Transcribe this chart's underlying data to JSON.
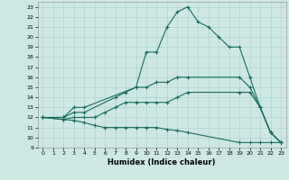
{
  "xlabel": "Humidex (Indice chaleur)",
  "xlim": [
    -0.5,
    23.5
  ],
  "ylim": [
    9,
    23.5
  ],
  "xticks": [
    0,
    1,
    2,
    3,
    4,
    5,
    6,
    7,
    8,
    9,
    10,
    11,
    12,
    13,
    14,
    15,
    16,
    17,
    18,
    19,
    20,
    21,
    22,
    23
  ],
  "yticks": [
    9,
    10,
    11,
    12,
    13,
    14,
    15,
    16,
    17,
    18,
    19,
    20,
    21,
    22,
    23
  ],
  "background_color": "#cde8e4",
  "grid_color": "#b0d4ce",
  "line_color": "#1a6b5e",
  "lines": [
    {
      "x": [
        0,
        2,
        3,
        4,
        9,
        10,
        11,
        12,
        13,
        14,
        15,
        16,
        17,
        18,
        19,
        20,
        21,
        22,
        23
      ],
      "y": [
        12,
        12,
        13,
        13,
        15,
        18.5,
        18.5,
        21,
        22.5,
        23,
        21.5,
        21.0,
        20.0,
        19.0,
        19.0,
        16.0,
        13.0,
        10.5,
        9.5
      ]
    },
    {
      "x": [
        0,
        2,
        3,
        4,
        7,
        8,
        9,
        10,
        11,
        12,
        13,
        14,
        19,
        20,
        21,
        22,
        23
      ],
      "y": [
        12,
        12,
        12.5,
        12.5,
        14,
        14.5,
        15,
        15,
        15.5,
        15.5,
        16,
        16,
        16,
        15.0,
        13.0,
        10.5,
        9.5
      ]
    },
    {
      "x": [
        0,
        2,
        3,
        4,
        5,
        6,
        7,
        8,
        9,
        10,
        11,
        12,
        13,
        14,
        19,
        20,
        21,
        22,
        23
      ],
      "y": [
        12,
        11.8,
        12,
        12,
        12,
        12.5,
        13,
        13.5,
        13.5,
        13.5,
        13.5,
        13.5,
        14,
        14.5,
        14.5,
        14.5,
        13.0,
        10.5,
        9.5
      ]
    },
    {
      "x": [
        0,
        2,
        3,
        4,
        5,
        6,
        7,
        8,
        9,
        10,
        11,
        12,
        13,
        14,
        19,
        20,
        21,
        22,
        23
      ],
      "y": [
        12,
        11.8,
        11.7,
        11.5,
        11.2,
        11.0,
        11.0,
        11.0,
        11.0,
        11.0,
        11.0,
        10.8,
        10.7,
        10.5,
        9.5,
        9.5,
        9.5,
        9.5,
        9.5
      ]
    }
  ]
}
